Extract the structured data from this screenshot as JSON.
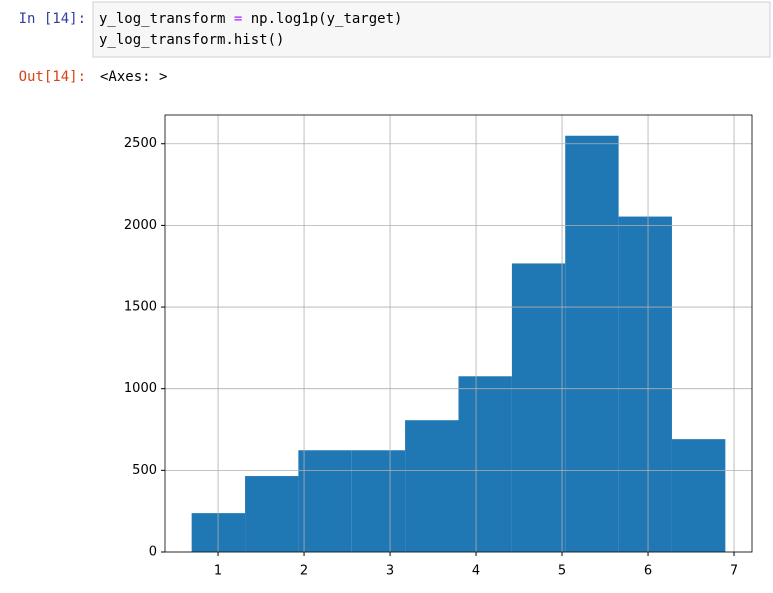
{
  "input": {
    "prompt": "In [14]:",
    "code": [
      [
        "y_log_transform ",
        "=",
        " np.log1p(y_target)"
      ],
      [
        "y_log_transform.hist()"
      ]
    ]
  },
  "output": {
    "prompt": "Out[14]:",
    "text": "<Axes: >"
  },
  "chart_data": {
    "type": "histogram",
    "bins": [
      0.693,
      1.314,
      1.934,
      2.555,
      3.175,
      3.796,
      4.417,
      5.037,
      5.658,
      6.278,
      6.899
    ],
    "values": [
      238,
      465,
      623,
      623,
      807,
      1076,
      1767,
      2549,
      2054,
      691
    ],
    "color": "#1f77b4",
    "xlim": [
      0.383,
      7.209
    ],
    "xticks": [
      1,
      2,
      3,
      4,
      5,
      6,
      7
    ],
    "ylim": [
      0,
      2676
    ],
    "yticks": [
      0,
      500,
      1000,
      1500,
      2000,
      2500
    ],
    "grid": true
  }
}
